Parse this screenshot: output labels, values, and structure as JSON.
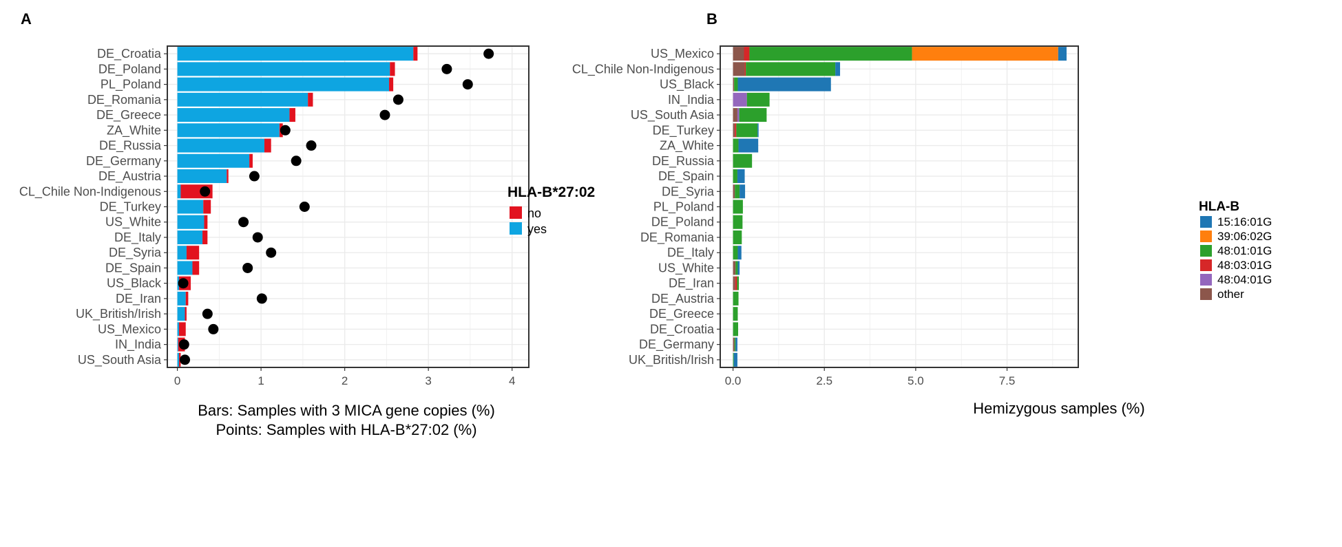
{
  "colors": {
    "no": "#e2131f",
    "yes": "#0ea5e1",
    "point": "#000000",
    "grid": "#ebebeb",
    "frame": "#333333",
    "hla": {
      "15:16:01G": "#1f77b4",
      "39:06:02G": "#ff7f0e",
      "48:01:01G": "#2ca02c",
      "48:03:01G": "#d62728",
      "48:04:01G": "#9467bd",
      "other": "#8c564b"
    }
  },
  "chart_data": [
    {
      "panel": "A",
      "type": "bar",
      "xlabel_line1": "Bars: Samples with 3 MICA gene copies (%)",
      "xlabel_line2": "Points: Samples with HLA-B*27:02 (%)",
      "xlim": [
        -0.12,
        4.2
      ],
      "ticks": [
        0,
        1,
        2,
        3,
        4
      ],
      "tick_labels": [
        "0",
        "1",
        "2",
        "3",
        "4"
      ],
      "legend": {
        "title": "HLA-B*27:02",
        "items": [
          {
            "key": "no",
            "label": "no"
          },
          {
            "key": "yes",
            "label": "yes"
          }
        ]
      },
      "categories": [
        "DE_Croatia",
        "DE_Poland",
        "PL_Poland",
        "DE_Romania",
        "DE_Greece",
        "ZA_White",
        "DE_Russia",
        "DE_Germany",
        "DE_Austria",
        "CL_Chile Non-Indigenous",
        "DE_Turkey",
        "US_White",
        "DE_Italy",
        "DE_Syria",
        "DE_Spain",
        "US_Black",
        "DE_Iran",
        "UK_British/Irish",
        "US_Mexico",
        "IN_India",
        "US_South Asia"
      ],
      "series": [
        {
          "name": "yes",
          "values": [
            2.82,
            2.54,
            2.53,
            1.56,
            1.34,
            1.22,
            1.04,
            0.86,
            0.59,
            0.04,
            0.31,
            0.32,
            0.3,
            0.11,
            0.18,
            0.02,
            0.1,
            0.09,
            0.02,
            0.01,
            0.02
          ]
        },
        {
          "name": "no",
          "values": [
            0.05,
            0.06,
            0.05,
            0.06,
            0.07,
            0.04,
            0.08,
            0.04,
            0.02,
            0.38,
            0.09,
            0.04,
            0.06,
            0.15,
            0.08,
            0.14,
            0.03,
            0.02,
            0.08,
            0.08,
            0.02
          ]
        }
      ],
      "points": [
        3.72,
        3.22,
        3.47,
        2.64,
        2.48,
        1.29,
        1.6,
        1.42,
        0.92,
        0.33,
        1.52,
        0.79,
        0.96,
        1.12,
        0.84,
        0.07,
        1.01,
        0.36,
        0.43,
        0.08,
        0.09
      ]
    },
    {
      "panel": "B",
      "type": "bar",
      "xlabel": "Hemizygous samples (%)",
      "xlim": [
        -0.35,
        9.45
      ],
      "ticks": [
        0,
        2.5,
        5,
        7.5
      ],
      "tick_labels": [
        "0.0",
        "2.5",
        "5.0",
        "7.5"
      ],
      "legend": {
        "title": "HLA-B",
        "items": [
          "15:16:01G",
          "39:06:02G",
          "48:01:01G",
          "48:03:01G",
          "48:04:01G",
          "other"
        ]
      },
      "categories": [
        "US_Mexico",
        "CL_Chile Non-Indigenous",
        "US_Black",
        "IN_India",
        "US_South Asia",
        "DE_Turkey",
        "ZA_White",
        "DE_Russia",
        "DE_Spain",
        "DE_Syria",
        "PL_Poland",
        "DE_Poland",
        "DE_Romania",
        "DE_Italy",
        "US_White",
        "DE_Iran",
        "DE_Austria",
        "DE_Greece",
        "DE_Croatia",
        "DE_Germany",
        "UK_British/Irish"
      ],
      "series": [
        {
          "name": "other",
          "values": [
            0.3,
            0.32,
            0.03,
            0.0,
            0.12,
            0.05,
            0.0,
            0.0,
            0.0,
            0.05,
            0.0,
            0.0,
            0.0,
            0.0,
            0.07,
            0.06,
            0.0,
            0.0,
            0.0,
            0.04,
            0.0
          ]
        },
        {
          "name": "48:04:01G",
          "values": [
            0.0,
            0.0,
            0.0,
            0.38,
            0.05,
            0.0,
            0.0,
            0.0,
            0.0,
            0.0,
            0.0,
            0.0,
            0.0,
            0.0,
            0.0,
            0.0,
            0.0,
            0.0,
            0.0,
            0.0,
            0.0
          ]
        },
        {
          "name": "48:03:01G",
          "values": [
            0.15,
            0.03,
            0.0,
            0.0,
            0.0,
            0.04,
            0.0,
            0.0,
            0.0,
            0.0,
            0.0,
            0.0,
            0.0,
            0.0,
            0.0,
            0.05,
            0.0,
            0.0,
            0.0,
            0.0,
            0.0
          ]
        },
        {
          "name": "48:01:01G",
          "values": [
            4.45,
            2.45,
            0.1,
            0.62,
            0.75,
            0.58,
            0.15,
            0.52,
            0.12,
            0.13,
            0.27,
            0.26,
            0.24,
            0.13,
            0.06,
            0.05,
            0.15,
            0.13,
            0.14,
            0.03,
            0.02
          ]
        },
        {
          "name": "39:06:02G",
          "values": [
            4.0,
            0.0,
            0.0,
            0.0,
            0.0,
            0.0,
            0.0,
            0.0,
            0.0,
            0.0,
            0.0,
            0.0,
            0.0,
            0.0,
            0.0,
            0.0,
            0.0,
            0.0,
            0.0,
            0.0,
            0.0
          ]
        },
        {
          "name": "15:16:01G",
          "values": [
            0.23,
            0.13,
            2.55,
            0.0,
            0.0,
            0.03,
            0.54,
            0.0,
            0.2,
            0.15,
            0.0,
            0.0,
            0.0,
            0.1,
            0.05,
            0.0,
            0.0,
            0.0,
            0.0,
            0.05,
            0.1
          ]
        }
      ]
    }
  ]
}
